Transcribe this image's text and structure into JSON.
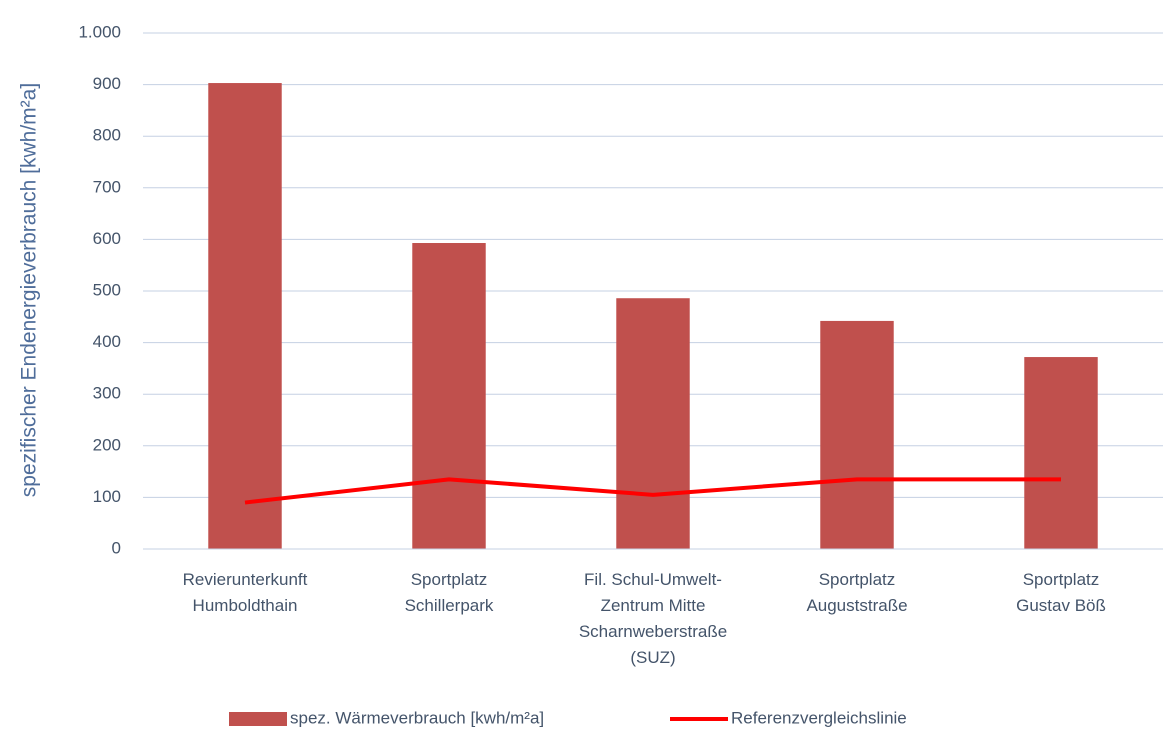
{
  "chart_data": {
    "type": "bar",
    "y_label": "spezifischer Endenergieverbrauch [kwh/m²a]",
    "categories": [
      "Revierunterkunft\nHumboldthain",
      "Sportplatz\nSchillerpark",
      "Fil. Schul-Umwelt-\nZentrum Mitte\nScharnweberstraße\n(SUZ)",
      "Sportplatz\nAuguststraße",
      "Sportplatz\nGustav Böß"
    ],
    "series": [
      {
        "name": "spez. Wärmeverbrauch [kwh/m²a]",
        "type": "bar",
        "color": "#c0504d",
        "values": [
          903,
          593,
          486,
          442,
          372
        ]
      },
      {
        "name": "Referenzvergleichslinie",
        "type": "line",
        "color": "#ff0000",
        "values": [
          90,
          135,
          105,
          135,
          135
        ]
      }
    ],
    "ylim": [
      0,
      1000
    ],
    "yticks": [
      0,
      100,
      200,
      300,
      400,
      500,
      600,
      700,
      800,
      900,
      {
        "value": 1000,
        "label": "1.000"
      }
    ],
    "grid": true,
    "legend": "bottom"
  }
}
